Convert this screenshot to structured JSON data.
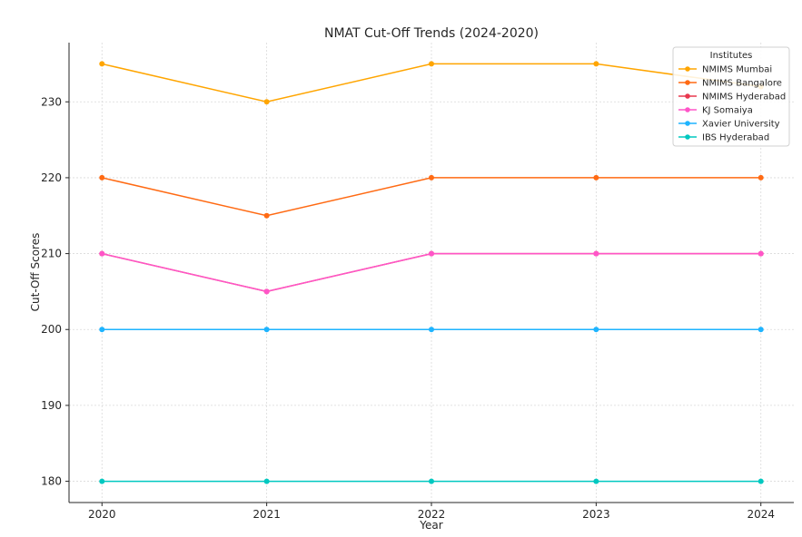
{
  "chart_data": {
    "type": "line",
    "title": "NMAT Cut-Off Trends (2024-2020)",
    "xlabel": "Year",
    "ylabel": "Cut-Off Scores",
    "x": [
      2020,
      2021,
      2022,
      2023,
      2024
    ],
    "x_tick_labels": [
      "2020",
      "2021",
      "2022",
      "2023",
      "2024"
    ],
    "y_ticks": [
      180,
      190,
      200,
      210,
      220,
      230
    ],
    "y_tick_labels": [
      "180",
      "190",
      "200",
      "210",
      "220",
      "230"
    ],
    "xlim": [
      2019.8,
      2024.2
    ],
    "ylim": [
      177.2,
      237.8
    ],
    "grid": true,
    "legend_title": "Institutes",
    "legend_position": "top-right",
    "series": [
      {
        "name": "NMIMS Mumbai",
        "color": "#FFA500",
        "values": [
          235,
          230,
          235,
          235,
          232
        ]
      },
      {
        "name": "NMIMS Bangalore",
        "color": "#FF6A13",
        "values": [
          220,
          215,
          220,
          220,
          220
        ]
      },
      {
        "name": "NMIMS Hyderabad",
        "color": "#E8384F",
        "values": [
          210,
          205,
          210,
          210,
          210
        ]
      },
      {
        "name": "KJ Somaiya",
        "color": "#FF55C8",
        "values": [
          210,
          205,
          210,
          210,
          210
        ]
      },
      {
        "name": "Xavier University",
        "color": "#1EB4FF",
        "values": [
          200,
          200,
          200,
          200,
          200
        ]
      },
      {
        "name": "IBS Hyderabad",
        "color": "#00C8C0",
        "values": [
          180,
          180,
          180,
          180,
          180
        ]
      }
    ]
  }
}
